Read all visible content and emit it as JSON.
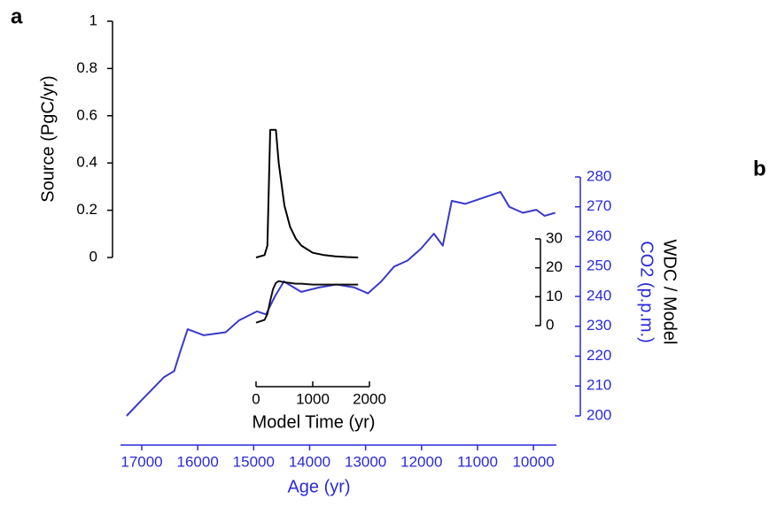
{
  "panels": [
    "a",
    "b"
  ],
  "chart_data": [
    {
      "type": "line",
      "x_label": "Age (yr)",
      "y_label_lines": [
        "WDC / Model",
        "CO2 (p.p.m.)"
      ],
      "x": [
        17270,
        17000,
        16600,
        16420,
        16320,
        16180,
        15890,
        15500,
        15260,
        14940,
        14780,
        14620,
        14460,
        14150,
        13830,
        13520,
        13200,
        12960,
        12720,
        12490,
        12250,
        12010,
        11780,
        11620,
        11460,
        11220,
        10900,
        10590,
        10430,
        10190,
        9950,
        9800,
        9610
      ],
      "series": [
        {
          "color": "#3a3ac8",
          "values": [
            200,
            205.3,
            213,
            215,
            221,
            229,
            227,
            228,
            232,
            235,
            234,
            240,
            245,
            241.5,
            243,
            244,
            243,
            241,
            245,
            250,
            252,
            256,
            261,
            257,
            272,
            271,
            273,
            275,
            270,
            268,
            269,
            267,
            268
          ]
        }
      ],
      "xlim": [
        17380,
        9590
      ],
      "xticks": [
        17000,
        16000,
        15000,
        14000,
        13000,
        12000,
        11000,
        10000
      ],
      "ylim": [
        200,
        280
      ],
      "yticks": [
        200,
        210,
        220,
        230,
        240,
        250,
        260,
        270,
        280
      ],
      "axis_color": "#2a2ad8"
    },
    {
      "type": "line",
      "x_label": "Model Time (yr)",
      "y_label": "Source (PgC/yr)",
      "x": [
        0,
        150,
        200,
        250,
        300,
        350,
        400,
        500,
        600,
        700,
        800,
        1000,
        1200,
        1400,
        1600,
        1800
      ],
      "series": [
        {
          "color": "#000000",
          "values": [
            0,
            0.01,
            0.05,
            0.54,
            0.54,
            0.54,
            0.4,
            0.22,
            0.13,
            0.08,
            0.05,
            0.02,
            0.01,
            0.005,
            0.002,
            0
          ]
        },
        {
          "color": "#111111",
          "axis": "y2",
          "values": [
            1,
            2,
            4,
            8.6,
            12.6,
            14.8,
            15.4,
            15,
            14.8,
            14.5,
            14.5,
            14.2,
            14.2,
            14.2,
            14.2,
            14.2
          ]
        }
      ],
      "xlim": [
        0,
        2000
      ],
      "xticks": [
        0,
        1000,
        2000
      ],
      "ylim": [
        0,
        1
      ],
      "yticks": [
        0,
        0.2,
        0.4,
        0.6,
        0.8,
        1
      ],
      "y2lim": [
        0,
        30
      ],
      "y2ticks": [
        0,
        10,
        20,
        30
      ],
      "axis_color": "#000000"
    }
  ]
}
